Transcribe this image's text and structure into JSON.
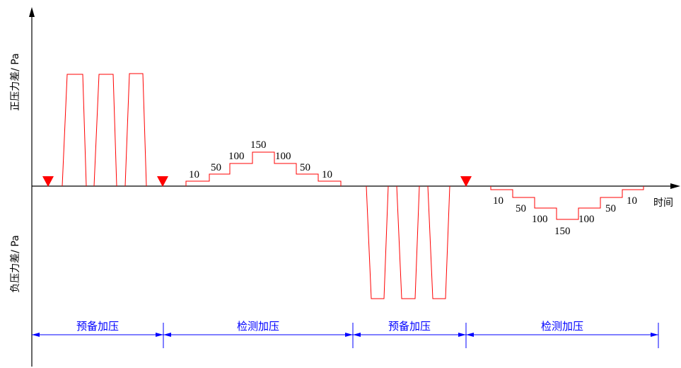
{
  "y_axis_labels": {
    "positive": "正压力差/ Pa",
    "negative": "负压力差/ Pa"
  },
  "x_axis_label": "时间",
  "step_labels": {
    "positive": [
      "10",
      "50",
      "100",
      "150",
      "100",
      "50",
      "10"
    ],
    "negative": [
      "10",
      "50",
      "100",
      "150",
      "100",
      "50",
      "10"
    ]
  },
  "phases": [
    "预备加压",
    "检测加压",
    "预备加压",
    "检测加压"
  ],
  "colors": {
    "axis": "#000000",
    "waveform": "#ff0000",
    "marker": "#ff0000",
    "phase": "#0000ff"
  }
}
